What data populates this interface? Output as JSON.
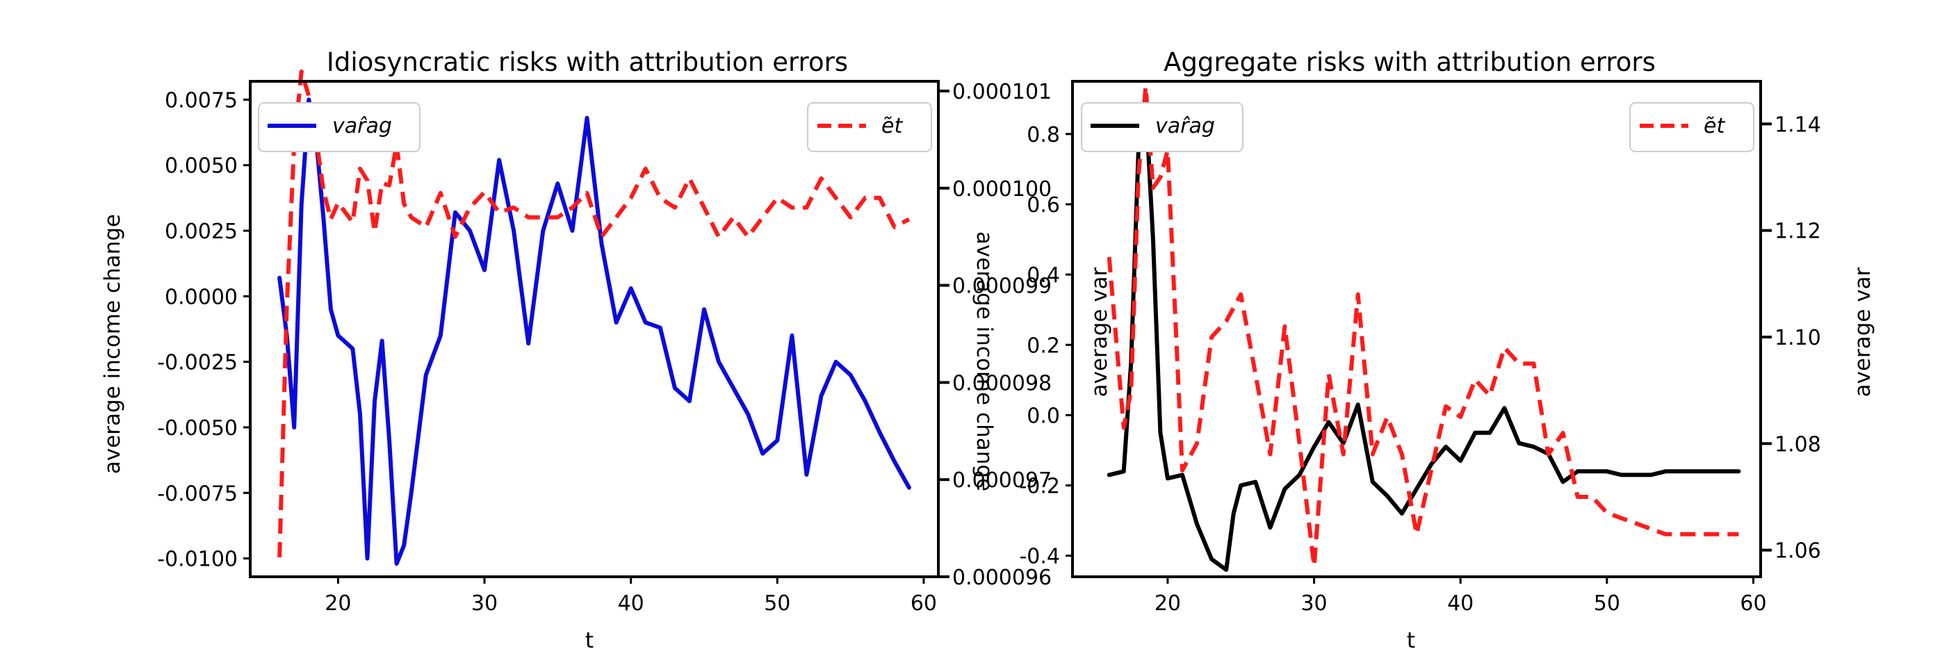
{
  "chart_data": [
    {
      "type": "line",
      "title": "Idiosyncratic risks with attribution errors",
      "xlabel": "t",
      "ylabel": "average income change",
      "ylabel_right": "average income change",
      "xlim": [
        14,
        61
      ],
      "ylim": [
        -0.0107,
        0.0082
      ],
      "ylim_right": [
        9.6e-05,
        0.0001011
      ],
      "xticks": [
        "20",
        "30",
        "40",
        "50",
        "60"
      ],
      "yticks": [
        "0.0075",
        "0.0050",
        "0.0025",
        "0.0000",
        "-0.0025",
        "-0.0050",
        "-0.0075",
        "-0.0100"
      ],
      "yticks_right": [
        "0.000101",
        "0.000100",
        "0.000099",
        "0.000098",
        "0.000097",
        "0.000096"
      ],
      "legend_left": "var̂ag",
      "legend_right": "ẽt",
      "series": [
        {
          "name": "var̂ag",
          "color": "#0b0bdc",
          "axis": "left",
          "x": [
            16,
            16.5,
            17,
            17.5,
            18,
            18.5,
            19,
            19.5,
            20,
            21,
            21.5,
            22,
            22.5,
            23,
            23.5,
            24,
            24.5,
            25,
            26,
            27,
            28,
            29,
            30,
            31,
            32,
            33,
            34,
            35,
            36,
            37,
            38,
            39,
            40,
            41,
            42,
            43,
            44,
            45,
            46,
            47,
            48,
            49,
            50,
            51,
            52,
            53,
            54,
            55,
            56,
            57,
            58,
            59
          ],
          "y": [
            0.0007,
            -0.0015,
            -0.005,
            0.0035,
            0.0075,
            0.006,
            0.003,
            -0.0005,
            -0.0015,
            -0.002,
            -0.0045,
            -0.01,
            -0.004,
            -0.0017,
            -0.0055,
            -0.0102,
            -0.0095,
            -0.0075,
            -0.003,
            -0.0015,
            0.0032,
            0.0025,
            0.001,
            0.0052,
            0.0025,
            -0.0018,
            0.0025,
            0.0043,
            0.0025,
            0.0068,
            0.002,
            -0.001,
            0.0003,
            -0.001,
            -0.0012,
            -0.0035,
            -0.004,
            -0.0005,
            -0.0025,
            -0.0035,
            -0.0045,
            -0.006,
            -0.0055,
            -0.0015,
            -0.0068,
            -0.0038,
            -0.0025,
            -0.003,
            -0.004,
            -0.0052,
            -0.0063,
            -0.0073
          ]
        },
        {
          "name": "ẽt",
          "color": "#ff1a1a",
          "axis": "right",
          "x": [
            16,
            16.5,
            17,
            17.5,
            18,
            18.5,
            19,
            19.5,
            20,
            21,
            21.5,
            22,
            22.5,
            23,
            23.5,
            24,
            24.5,
            25,
            26,
            27,
            28,
            29,
            30,
            31,
            32,
            33,
            34,
            35,
            36,
            37,
            38,
            39,
            40,
            41,
            42,
            43,
            44,
            45,
            46,
            47,
            48,
            49,
            50,
            51,
            52,
            53,
            54,
            55,
            56,
            57,
            58,
            59
          ],
          "y": [
            9.62e-05,
            9.88e-05,
            0.00010045,
            0.0001012,
            0.00010095,
            0.00010052,
            9.998e-05,
            9.968e-05,
            9.985e-05,
            9.965e-05,
            0.0001002,
            0.00010008,
            9.955e-05,
            0.00010005,
            0.00010003,
            0.00010045,
            9.984e-05,
            9.97e-05,
            9.96e-05,
            9.995e-05,
            9.95e-05,
            9.98e-05,
            9.996e-05,
            9.975e-05,
            9.98e-05,
            9.97e-05,
            9.97e-05,
            9.97e-05,
            9.98e-05,
            9.995e-05,
            9.95e-05,
            9.97e-05,
            9.99e-05,
            0.0001002,
            9.99e-05,
            9.98e-05,
            0.0001001,
            9.98e-05,
            9.95e-05,
            9.97e-05,
            9.95e-05,
            9.97e-05,
            9.99e-05,
            9.98e-05,
            9.98e-05,
            0.0001001,
            9.99e-05,
            9.97e-05,
            9.99e-05,
            9.99e-05,
            9.96e-05,
            9.968e-05
          ]
        }
      ]
    },
    {
      "type": "line",
      "title": "Aggregate risks with attribution errors",
      "xlabel": "t",
      "ylabel": "average var",
      "ylabel_right": "average var",
      "xlim": [
        13.5,
        60.5
      ],
      "ylim": [
        -0.46,
        0.95
      ],
      "ylim_right": [
        1.055,
        1.148
      ],
      "xticks": [
        "20",
        "30",
        "40",
        "50",
        "60"
      ],
      "yticks": [
        "0.8",
        "0.6",
        "0.4",
        "0.2",
        "0.0",
        "-0.2",
        "-0.4"
      ],
      "yticks_right": [
        "1.14",
        "1.12",
        "1.10",
        "1.08",
        "1.06"
      ],
      "legend_left": "var̂ag",
      "legend_right": "ẽt",
      "series": [
        {
          "name": "var̂ag",
          "color": "#000000",
          "axis": "left",
          "x": [
            16,
            17,
            17.5,
            18,
            18.5,
            19,
            19.5,
            20,
            21,
            22,
            23,
            24,
            24.5,
            25,
            26,
            27,
            28,
            29,
            30,
            31,
            32,
            33,
            34,
            35,
            36,
            37,
            38,
            39,
            40,
            41,
            42,
            43,
            44,
            45,
            46,
            47,
            48,
            49,
            50,
            51,
            52,
            53,
            54,
            55,
            56,
            57,
            58,
            59
          ],
          "y": [
            -0.17,
            -0.16,
            0.15,
            0.75,
            0.89,
            0.5,
            -0.05,
            -0.18,
            -0.17,
            -0.31,
            -0.41,
            -0.44,
            -0.28,
            -0.2,
            -0.19,
            -0.32,
            -0.21,
            -0.17,
            -0.09,
            -0.02,
            -0.08,
            0.03,
            -0.19,
            -0.23,
            -0.28,
            -0.21,
            -0.14,
            -0.09,
            -0.13,
            -0.05,
            -0.05,
            0.02,
            -0.08,
            -0.09,
            -0.11,
            -0.19,
            -0.16,
            -0.16,
            -0.16,
            -0.17,
            -0.17,
            -0.17,
            -0.16,
            -0.16,
            -0.16,
            -0.16,
            -0.16,
            -0.16
          ]
        },
        {
          "name": "ẽt",
          "color": "#ff1a1a",
          "axis": "right",
          "x": [
            16,
            17,
            17.5,
            18,
            18.5,
            19,
            19.5,
            20,
            21,
            22,
            23,
            24,
            25,
            26,
            27,
            28,
            29,
            30,
            31,
            32,
            33,
            34,
            35,
            36,
            37,
            38,
            39,
            40,
            41,
            42,
            43,
            44,
            45,
            46,
            47,
            48,
            49,
            50,
            51,
            52,
            53,
            54,
            55,
            56,
            57,
            58,
            59
          ],
          "y": [
            1.115,
            1.083,
            1.09,
            1.13,
            1.147,
            1.128,
            1.13,
            1.135,
            1.075,
            1.08,
            1.1,
            1.103,
            1.108,
            1.093,
            1.078,
            1.102,
            1.08,
            1.057,
            1.093,
            1.078,
            1.108,
            1.078,
            1.085,
            1.078,
            1.063,
            1.075,
            1.087,
            1.085,
            1.092,
            1.089,
            1.098,
            1.095,
            1.095,
            1.078,
            1.082,
            1.07,
            1.07,
            1.067,
            1.066,
            1.065,
            1.064,
            1.063,
            1.063,
            1.063,
            1.063,
            1.063,
            1.063
          ]
        }
      ]
    }
  ]
}
